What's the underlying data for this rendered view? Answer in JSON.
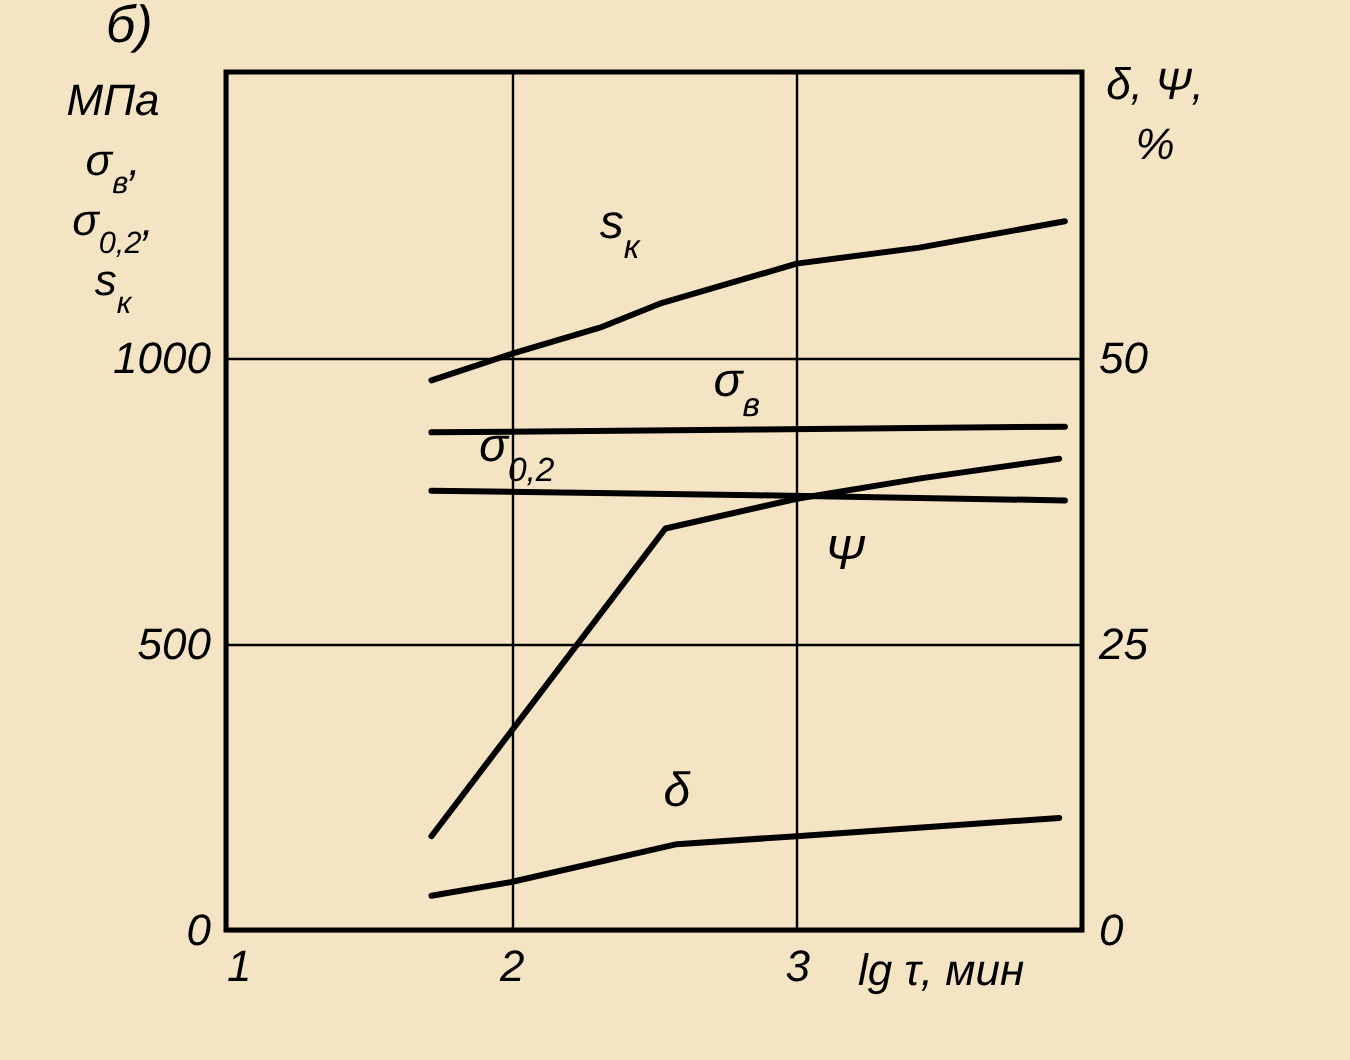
{
  "chart_data": {
    "type": "line",
    "title": "б)",
    "xlabel": "lg τ, мин",
    "ylabel": "МПа σ$_{в}$, σ$_{0,2}$, s$_{к}$",
    "y2label": "δ, Ψ, %",
    "xlim": [
      1,
      4
    ],
    "xticks": [
      1,
      2,
      3
    ],
    "ylim": [
      0,
      1500
    ],
    "yticks": [
      0,
      500,
      {
        "value": 1000,
        "label": "1000"
      }
    ],
    "y2lim": [
      0,
      75
    ],
    "y2ticks": [
      0,
      25,
      50
    ],
    "grid": true,
    "legend": false,
    "marker": "none",
    "line_style": "solid",
    "series": [
      {
        "name": "s$_{к}$",
        "color": "#000000",
        "x": [
          1.72,
          2.0,
          2.31,
          2.52,
          3.0,
          3.43,
          3.94
        ],
        "values": [
          961,
          1007,
          1053,
          1095,
          1165,
          1193,
          1239
        ]
      },
      {
        "name": "σ$_{в}$",
        "color": "#000000",
        "x": [
          1.72,
          2.86,
          3.94
        ],
        "values": [
          870,
          875,
          880
        ]
      },
      {
        "name": "σ$_{0,2}$",
        "color": "#000000",
        "x": [
          1.72,
          2.86,
          3.94
        ],
        "values": [
          768,
          760,
          751
        ]
      },
      {
        "name": "Ψ",
        "color": "#000000",
        "axis": "y2",
        "x": [
          1.72,
          2.54,
          3.0,
          3.44,
          3.92
        ],
        "values": [
          8.2,
          35.1,
          37.7,
          39.5,
          41.2
        ]
      },
      {
        "name": "δ",
        "color": "#000000",
        "axis": "y2",
        "x": [
          1.72,
          2.0,
          2.58,
          3.0,
          3.92
        ],
        "values": [
          3.0,
          4.2,
          7.5,
          8.2,
          9.8
        ]
      }
    ]
  }
}
